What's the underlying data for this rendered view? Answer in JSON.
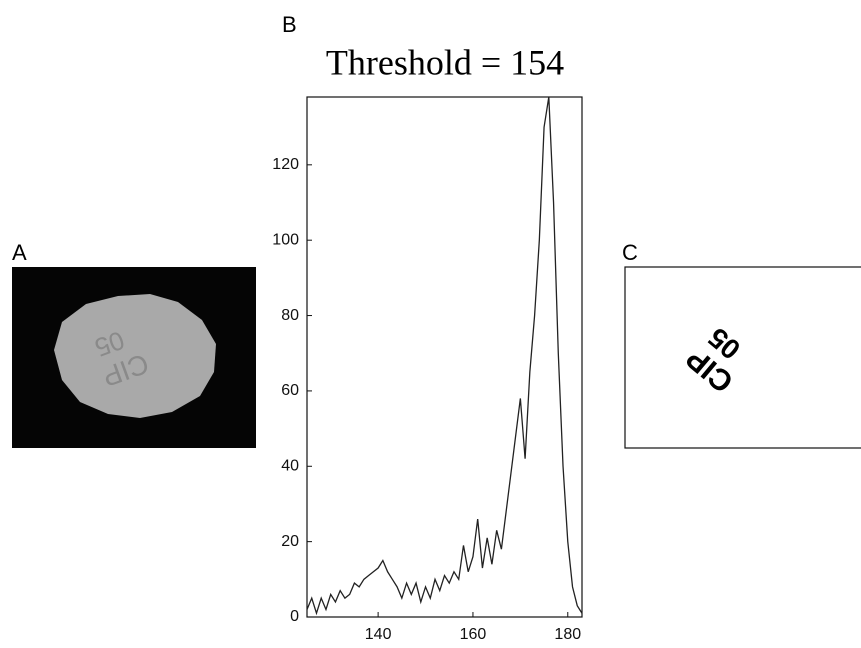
{
  "panel_labels": [
    "A",
    "B",
    "C"
  ],
  "image_texts": {
    "a": [
      "CIP",
      "05"
    ],
    "c": [
      "CIP",
      "05"
    ]
  },
  "chart_data": {
    "type": "line",
    "title": "Threshold = 154",
    "x": [
      125,
      126,
      127,
      128,
      129,
      130,
      131,
      132,
      133,
      134,
      135,
      136,
      137,
      138,
      139,
      140,
      141,
      142,
      143,
      144,
      145,
      146,
      147,
      148,
      149,
      150,
      151,
      152,
      153,
      154,
      155,
      156,
      157,
      158,
      159,
      160,
      161,
      162,
      163,
      164,
      165,
      166,
      167,
      168,
      169,
      170,
      171,
      172,
      173,
      174,
      175,
      176,
      177,
      178,
      179,
      180,
      181,
      182,
      183
    ],
    "values": [
      2,
      5,
      1,
      5,
      2,
      6,
      4,
      7,
      5,
      6,
      9,
      8,
      10,
      11,
      12,
      13,
      15,
      12,
      10,
      8,
      5,
      9,
      6,
      9,
      4,
      8,
      5,
      10,
      7,
      11,
      9,
      12,
      10,
      19,
      12,
      16,
      26,
      13,
      21,
      14,
      23,
      18,
      28,
      38,
      48,
      58,
      42,
      65,
      80,
      100,
      130,
      138,
      110,
      70,
      40,
      20,
      8,
      3,
      1
    ],
    "color": "#222222",
    "xlim": [
      125,
      183
    ],
    "xticks": [
      140,
      160,
      180
    ],
    "ylim": [
      0,
      138
    ],
    "yticks": [
      0,
      20,
      40,
      60,
      80,
      100,
      120
    ]
  }
}
